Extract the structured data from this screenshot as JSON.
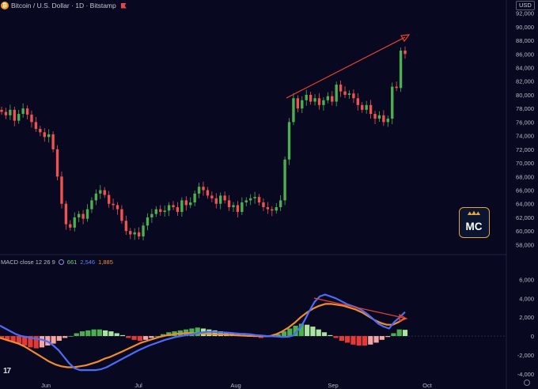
{
  "header": {
    "coin_icon": "bitcoin-icon",
    "title": "Bitcoin / U.S. Dollar · 1D · Bitstamp",
    "flag_icon": "flag-icon",
    "currency": "USD"
  },
  "macd": {
    "label": "MACD close 12 26 9",
    "hist_value": "661",
    "macd_value": "2,546",
    "signal_value": "1,885",
    "colors": {
      "hist_up": "#a8e6a0",
      "hist_up_strong": "#4caf50",
      "hist_down": "#f5a3a3",
      "hist_down_strong": "#e53935",
      "macd": "#4a6cf7",
      "signal": "#f28b2e"
    }
  },
  "chart_data": [
    {
      "type": "candlestick",
      "title": "",
      "yaxis_ticks": [
        "92,000",
        "90,000",
        "88,000",
        "86,000",
        "84,000",
        "82,000",
        "80,000",
        "78,000",
        "76,000",
        "74,000",
        "72,000",
        "70,000",
        "68,000",
        "66,000",
        "64,000",
        "62,000",
        "60,000",
        "58,000"
      ],
      "ylim": [
        57000,
        93000
      ],
      "xaxis_ticks": [
        "Jun",
        "Jul",
        "Aug",
        "Sep",
        "Oct"
      ],
      "colors": {
        "up": "#4caf50",
        "down": "#ef5350",
        "trendline": "#e8432e"
      },
      "closes": [
        77500,
        77000,
        77800,
        76200,
        77200,
        78000,
        77100,
        76000,
        75000,
        74500,
        73800,
        74200,
        72000,
        68000,
        64000,
        61000,
        60500,
        62000,
        62500,
        61800,
        63200,
        64500,
        65500,
        66000,
        65300,
        64000,
        63800,
        63200,
        61500,
        60000,
        59500,
        59800,
        59200,
        60800,
        62000,
        62500,
        63200,
        62800,
        63000,
        63800,
        63500,
        62800,
        64500,
        63800,
        64200,
        65500,
        66500,
        66000,
        65200,
        64800,
        64000,
        65200,
        64500,
        63500,
        63800,
        62800,
        64200,
        64500,
        64800,
        65000,
        64200,
        63500,
        63200,
        63000,
        63500,
        64500,
        70500,
        76000,
        79500,
        78000,
        79200,
        80000,
        79000,
        79500,
        78500,
        79200,
        79800,
        79000,
        81500,
        80500,
        80000,
        80200,
        79500,
        78500,
        77800,
        78500,
        77200,
        76500,
        77000,
        76000,
        76500,
        81200,
        81000,
        86500,
        86000
      ]
    },
    {
      "type": "macd",
      "yaxis_ticks": [
        "6,000",
        "4,000",
        "2,000",
        "0",
        "-2,000",
        "-4,000"
      ],
      "ylim": [
        -4600,
        6700
      ],
      "colors": {
        "macd": "#4a6cf7",
        "signal": "#f28b2e",
        "trendline": "#e8432e"
      },
      "macd_line": [
        1100,
        800,
        500,
        200,
        0,
        -100,
        -200,
        -300,
        -400,
        -600,
        -1000,
        -1500,
        -2200,
        -2900,
        -3400,
        -3600,
        -3600,
        -3600,
        -3600,
        -3500,
        -3300,
        -3000,
        -2700,
        -2400,
        -2100,
        -1800,
        -1500,
        -1250,
        -1000,
        -800,
        -600,
        -400,
        -250,
        -100,
        0,
        100,
        200,
        300,
        400,
        450,
        450,
        400,
        380,
        350,
        300,
        250,
        220,
        180,
        100,
        50,
        0,
        -20,
        -50,
        -100,
        -80,
        50,
        700,
        1500,
        2600,
        3600,
        4200,
        4400,
        4200,
        4000,
        3700,
        3400,
        3200,
        3000,
        2700,
        2300,
        1800,
        1300,
        1000,
        800,
        1500,
        2000,
        2546
      ],
      "signal_line": [
        -200,
        -400,
        -600,
        -800,
        -1100,
        -1500,
        -1900,
        -2300,
        -2700,
        -3000,
        -3200,
        -3300,
        -3300,
        -3200,
        -3100,
        -2900,
        -2700,
        -2400,
        -2200,
        -1900,
        -1600,
        -1300,
        -1000,
        -700,
        -500,
        -300,
        -100,
        50,
        150,
        250,
        300,
        330,
        300,
        260,
        230,
        200,
        170,
        140,
        100,
        60,
        30,
        10,
        0,
        -10,
        0,
        200,
        500,
        900,
        1400,
        2000,
        2500,
        2900,
        3200,
        3400,
        3400,
        3300,
        3200,
        3000,
        2800,
        2500,
        2100,
        1700,
        1400,
        1200,
        1200,
        1500,
        1885
      ],
      "histogram": [
        -300,
        -400,
        -600,
        -800,
        -1000,
        -1200,
        -1300,
        -1200,
        -1000,
        -800,
        -500,
        -200,
        0,
        300,
        500,
        600,
        700,
        700,
        600,
        500,
        300,
        100,
        -200,
        -400,
        -500,
        -400,
        -200,
        0,
        200,
        400,
        500,
        600,
        700,
        800,
        900,
        800,
        700,
        600,
        500,
        400,
        300,
        200,
        100,
        0,
        -100,
        -200,
        -100,
        0,
        200,
        500,
        800,
        1100,
        1300,
        1200,
        1000,
        700,
        400,
        100,
        -200,
        -500,
        -700,
        -900,
        -1000,
        -1000,
        -900,
        -700,
        -400,
        -100,
        300,
        700,
        661
      ]
    }
  ]
}
